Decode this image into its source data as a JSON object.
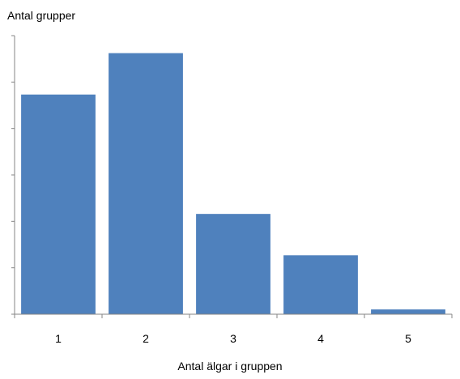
{
  "chart_data": {
    "type": "bar",
    "categories": [
      "1",
      "2",
      "3",
      "4",
      "5"
    ],
    "values": [
      138,
      164,
      63,
      37,
      3
    ],
    "title": "",
    "ylabel": "Antal grupper",
    "xlabel": "Antal älgar i gruppen",
    "ylim": [
      0,
      175
    ],
    "y_tick_labels_shown": false,
    "grid": false,
    "legend": "none",
    "colors": {
      "bar": "#4F81BD",
      "axis": "#868686"
    }
  }
}
